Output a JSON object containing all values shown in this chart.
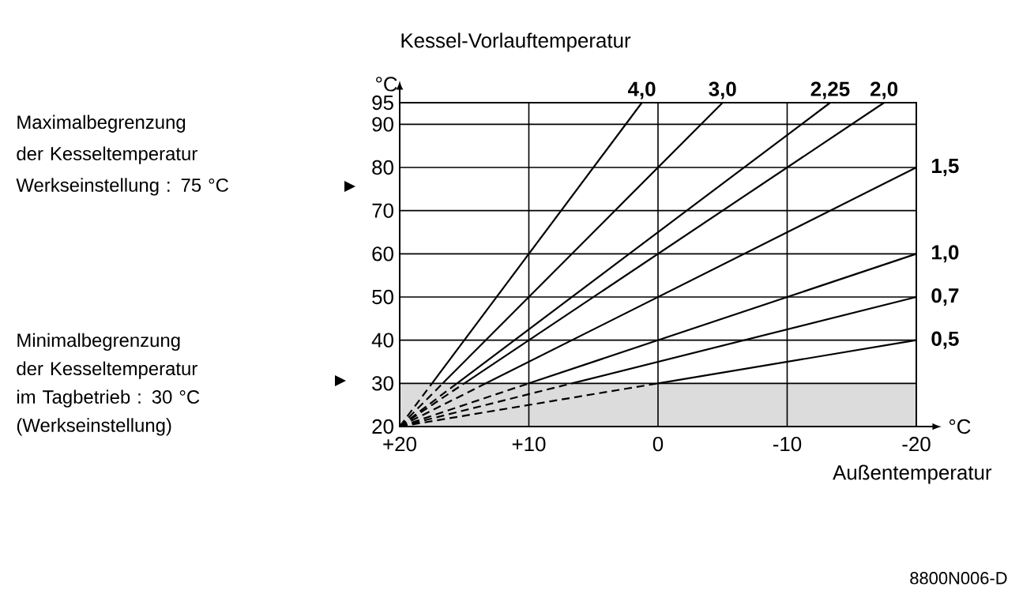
{
  "chart_data": {
    "type": "line",
    "ylabel": "Kessel-Vorlauftemperatur",
    "xlabel": "Außentemperatur",
    "xlim": [
      20,
      -20
    ],
    "ylim": [
      20,
      95
    ],
    "xticks": [
      {
        "value": 20,
        "label": "+20"
      },
      {
        "value": 10,
        "label": "+10"
      },
      0,
      -10,
      -20
    ],
    "yticks": [
      20,
      30,
      40,
      50,
      60,
      70,
      80,
      90,
      95
    ],
    "grid": true,
    "bands": [
      {
        "axis": "y",
        "from": 20,
        "to": 30,
        "color": "#dcdcdc"
      }
    ],
    "series": [
      {
        "name": "4,0",
        "color": "#000000",
        "line_style": "solid",
        "x": [
          17.5,
          1.25
        ],
        "values": [
          30,
          95
        ]
      },
      {
        "name": "3,0",
        "color": "#000000",
        "line_style": "solid",
        "x": [
          16.67,
          -5
        ],
        "values": [
          30,
          95
        ]
      },
      {
        "name": "2,25",
        "color": "#000000",
        "line_style": "solid",
        "x": [
          15.56,
          -13.33
        ],
        "values": [
          30,
          95
        ]
      },
      {
        "name": "2,0",
        "color": "#000000",
        "line_style": "solid",
        "x": [
          15,
          -17.5
        ],
        "values": [
          30,
          95
        ]
      },
      {
        "name": "1,5",
        "color": "#000000",
        "line_style": "solid",
        "x": [
          13.33,
          -20
        ],
        "values": [
          30,
          80
        ]
      },
      {
        "name": "1,0",
        "color": "#000000",
        "line_style": "solid",
        "x": [
          10,
          -20
        ],
        "values": [
          30,
          60
        ]
      },
      {
        "name": "0,7",
        "color": "#000000",
        "line_style": "solid",
        "x": [
          6.67,
          -20
        ],
        "values": [
          30,
          50
        ]
      },
      {
        "name": "0,5",
        "color": "#000000",
        "line_style": "solid",
        "x": [
          0,
          -20
        ],
        "values": [
          30,
          40
        ]
      },
      {
        "color": "#000000",
        "line_style": "dashed",
        "x": [
          20,
          17.5
        ],
        "values": [
          20,
          30
        ]
      },
      {
        "color": "#000000",
        "line_style": "dashed",
        "x": [
          20,
          16.67
        ],
        "values": [
          20,
          30
        ]
      },
      {
        "color": "#000000",
        "line_style": "dashed",
        "x": [
          20,
          15.56
        ],
        "values": [
          20,
          30
        ]
      },
      {
        "color": "#000000",
        "line_style": "dashed",
        "x": [
          20,
          15
        ],
        "values": [
          20,
          30
        ]
      },
      {
        "color": "#000000",
        "line_style": "dashed",
        "x": [
          20,
          13.33
        ],
        "values": [
          20,
          30
        ]
      },
      {
        "color": "#000000",
        "line_style": "dashed",
        "x": [
          20,
          10
        ],
        "values": [
          20,
          30
        ]
      },
      {
        "color": "#000000",
        "line_style": "dashed",
        "x": [
          20,
          6.67
        ],
        "values": [
          20,
          30
        ]
      },
      {
        "color": "#000000",
        "line_style": "dashed",
        "x": [
          20,
          0
        ],
        "values": [
          20,
          30
        ]
      }
    ],
    "annotations": [
      "Maximalbegrenzung der Kesseltemperatur Werkseinstellung : 75 °C",
      "Minimalbegrenzung der Kesseltemperatur im Tagbetrieb : 30 °C (Werkseinstellung)",
      "°C",
      "°C",
      "8800N006-D"
    ]
  }
}
